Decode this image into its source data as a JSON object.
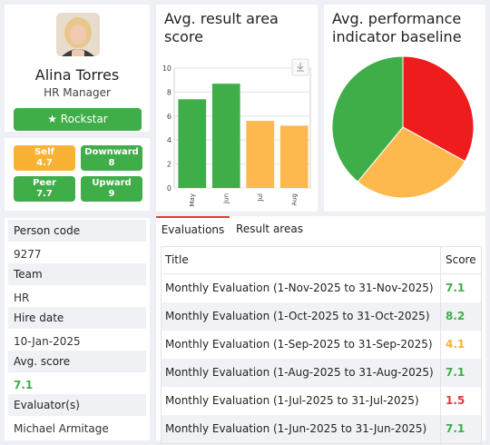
{
  "profile": {
    "name": "Alina Torres",
    "role": "HR Manager",
    "badge": "★ Rockstar"
  },
  "stats": [
    {
      "label": "Self",
      "value": "4.7",
      "color": "#f9b234"
    },
    {
      "label": "Downward",
      "value": "8",
      "color": "#3fae49"
    },
    {
      "label": "Peer",
      "value": "7.7",
      "color": "#3fae49"
    },
    {
      "label": "Upward",
      "value": "9",
      "color": "#3fae49"
    }
  ],
  "info": [
    {
      "label": "Person code",
      "value": "9277"
    },
    {
      "label": "Team",
      "value": "HR"
    },
    {
      "label": "Hire date",
      "value": "10-Jan-2025"
    },
    {
      "label": "Avg. score",
      "value": "7.1"
    },
    {
      "label": "Evaluator(s)",
      "value": "Michael Armitage"
    }
  ],
  "bar_chart_title": "Avg. result area score",
  "pie_chart_title": "Avg. performance indicator baseline",
  "chart_data": [
    {
      "type": "bar",
      "categories": [
        "May",
        "Jun",
        "Jul",
        "Aug"
      ],
      "values": [
        7.4,
        8.7,
        5.6,
        5.2
      ],
      "colors": [
        "#3fae49",
        "#3fae49",
        "#fdb94e",
        "#fdb94e"
      ],
      "ylim": [
        0,
        10
      ],
      "yticks": [
        "0",
        "2",
        "4",
        "6",
        "8",
        "10"
      ],
      "grid": true
    },
    {
      "type": "pie",
      "values": [
        33,
        28,
        39
      ],
      "colors": [
        "#ee1c1c",
        "#fdb94e",
        "#3fae49"
      ]
    }
  ],
  "tabs": [
    {
      "label": "Evaluations",
      "active": true
    },
    {
      "label": "Result areas",
      "active": false
    }
  ],
  "table": {
    "headers": [
      "Title",
      "Score"
    ],
    "rows": [
      {
        "title": "Monthly Evaluation (1-Nov-2025 to 31-Nov-2025)",
        "score": "7.1",
        "color": "#3fae49"
      },
      {
        "title": "Monthly Evaluation (1-Oct-2025 to 31-Oct-2025)",
        "score": "8.2",
        "color": "#3fae49"
      },
      {
        "title": "Monthly Evaluation (1-Sep-2025 to 31-Sep-2025)",
        "score": "4.1",
        "color": "#f9b234"
      },
      {
        "title": "Monthly Evaluation (1-Aug-2025 to 31-Aug-2025)",
        "score": "7.1",
        "color": "#3fae49"
      },
      {
        "title": "Monthly Evaluation (1-Jul-2025 to 31-Jul-2025)",
        "score": "1.5",
        "color": "#e23b3b"
      },
      {
        "title": "Monthly Evaluation (1-Jun-2025 to 31-Jun-2025)",
        "score": "7.1",
        "color": "#3fae49"
      }
    ]
  }
}
